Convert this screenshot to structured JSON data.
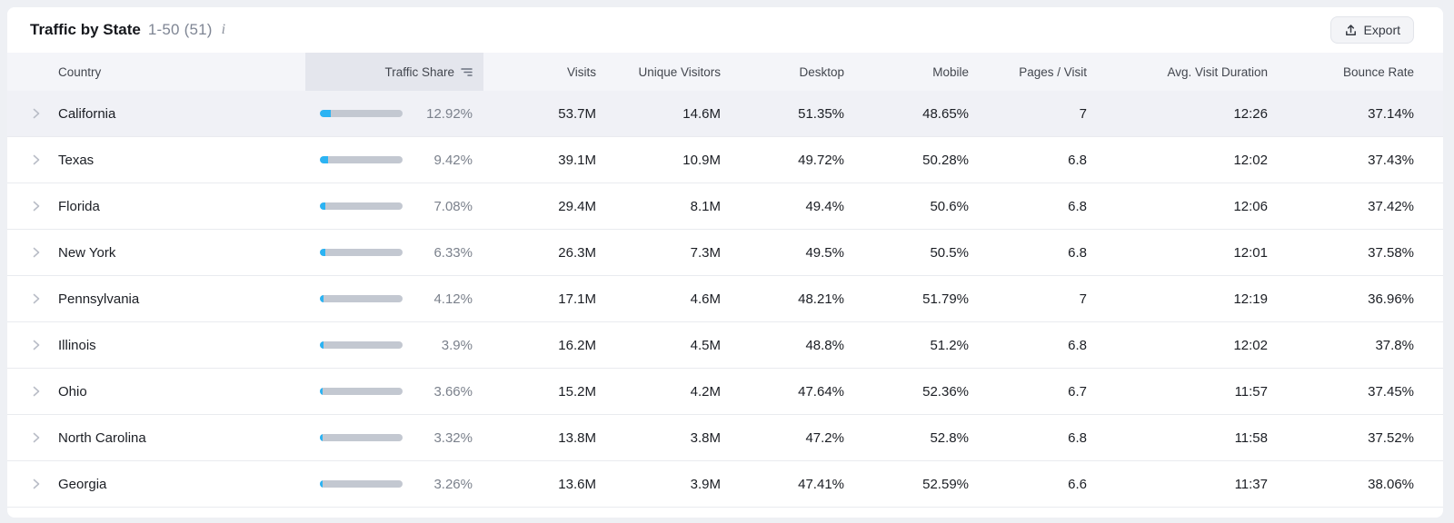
{
  "header": {
    "title": "Traffic by State",
    "range": "1-50 (51)",
    "export_label": "Export"
  },
  "table": {
    "columns": [
      "Country",
      "Traffic Share",
      "Visits",
      "Unique Visitors",
      "Desktop",
      "Mobile",
      "Pages / Visit",
      "Avg. Visit Duration",
      "Bounce Rate"
    ],
    "sorted_column": "Traffic Share",
    "rows": [
      {
        "state": "California",
        "share": "12.92%",
        "share_pct": 12.92,
        "visits": "53.7M",
        "unique_visitors": "14.6M",
        "desktop": "51.35%",
        "mobile": "48.65%",
        "pages_per_visit": "7",
        "avg_visit_duration": "12:26",
        "bounce_rate": "37.14%"
      },
      {
        "state": "Texas",
        "share": "9.42%",
        "share_pct": 9.42,
        "visits": "39.1M",
        "unique_visitors": "10.9M",
        "desktop": "49.72%",
        "mobile": "50.28%",
        "pages_per_visit": "6.8",
        "avg_visit_duration": "12:02",
        "bounce_rate": "37.43%"
      },
      {
        "state": "Florida",
        "share": "7.08%",
        "share_pct": 7.08,
        "visits": "29.4M",
        "unique_visitors": "8.1M",
        "desktop": "49.4%",
        "mobile": "50.6%",
        "pages_per_visit": "6.8",
        "avg_visit_duration": "12:06",
        "bounce_rate": "37.42%"
      },
      {
        "state": "New York",
        "share": "6.33%",
        "share_pct": 6.33,
        "visits": "26.3M",
        "unique_visitors": "7.3M",
        "desktop": "49.5%",
        "mobile": "50.5%",
        "pages_per_visit": "6.8",
        "avg_visit_duration": "12:01",
        "bounce_rate": "37.58%"
      },
      {
        "state": "Pennsylvania",
        "share": "4.12%",
        "share_pct": 4.12,
        "visits": "17.1M",
        "unique_visitors": "4.6M",
        "desktop": "48.21%",
        "mobile": "51.79%",
        "pages_per_visit": "7",
        "avg_visit_duration": "12:19",
        "bounce_rate": "36.96%"
      },
      {
        "state": "Illinois",
        "share": "3.9%",
        "share_pct": 3.9,
        "visits": "16.2M",
        "unique_visitors": "4.5M",
        "desktop": "48.8%",
        "mobile": "51.2%",
        "pages_per_visit": "6.8",
        "avg_visit_duration": "12:02",
        "bounce_rate": "37.8%"
      },
      {
        "state": "Ohio",
        "share": "3.66%",
        "share_pct": 3.66,
        "visits": "15.2M",
        "unique_visitors": "4.2M",
        "desktop": "47.64%",
        "mobile": "52.36%",
        "pages_per_visit": "6.7",
        "avg_visit_duration": "11:57",
        "bounce_rate": "37.45%"
      },
      {
        "state": "North Carolina",
        "share": "3.32%",
        "share_pct": 3.32,
        "visits": "13.8M",
        "unique_visitors": "3.8M",
        "desktop": "47.2%",
        "mobile": "52.8%",
        "pages_per_visit": "6.8",
        "avg_visit_duration": "11:58",
        "bounce_rate": "37.52%"
      },
      {
        "state": "Georgia",
        "share": "3.26%",
        "share_pct": 3.26,
        "visits": "13.6M",
        "unique_visitors": "3.9M",
        "desktop": "47.41%",
        "mobile": "52.59%",
        "pages_per_visit": "6.6",
        "avg_visit_duration": "11:37",
        "bounce_rate": "38.06%"
      }
    ]
  },
  "colors": {
    "bar_fill": "#2bb3f3",
    "bar_track": "#c3c8d1",
    "active_row_bg": "#f0f1f6",
    "header_bg": "#f4f5f9",
    "sorted_header_bg": "#e4e6ed"
  }
}
